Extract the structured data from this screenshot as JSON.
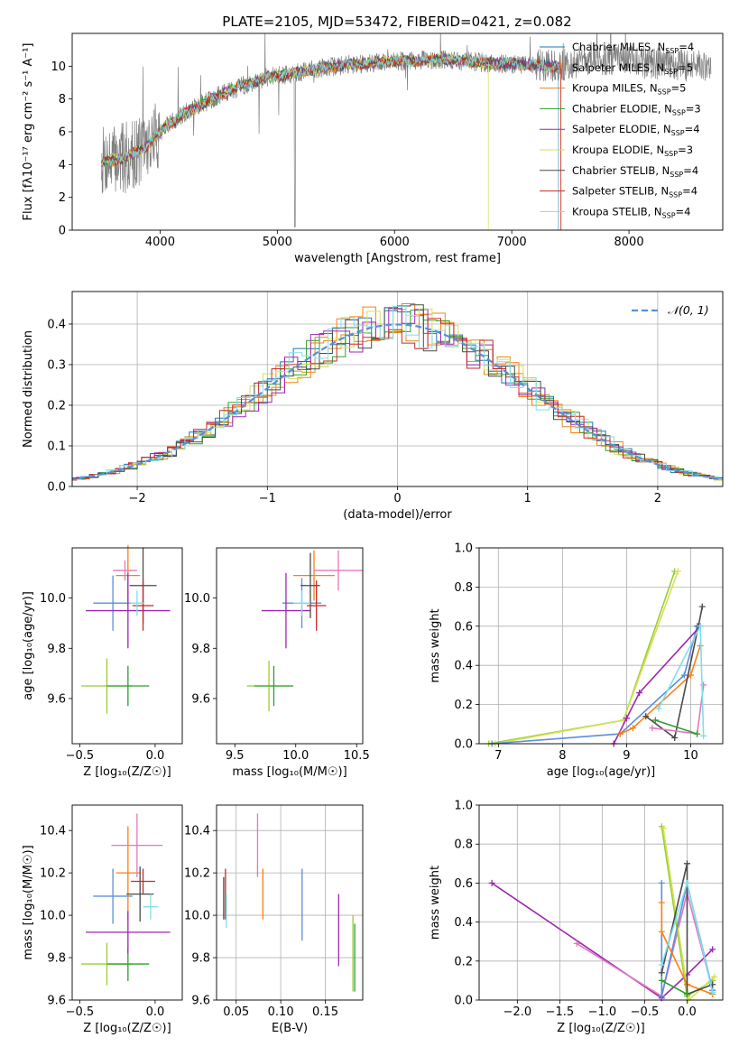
{
  "figure": {
    "title": "PLATE=2105, MJD=53472, FIBERID=0421, z=0.082"
  },
  "models": [
    {
      "name": "Chabrier MILES",
      "nssp": "4",
      "color": "#1f77b4"
    },
    {
      "name": "Salpeter MILES",
      "nssp": "5",
      "color": "#ff7f0e"
    },
    {
      "name": "Kroupa MILES",
      "nssp": "5",
      "color": "#d98c1f"
    },
    {
      "name": "Chabrier ELODIE",
      "nssp": "3",
      "color": "#2ca02c"
    },
    {
      "name": "Salpeter ELODIE",
      "nssp": "4",
      "color": "#9c27b0"
    },
    {
      "name": "Kroupa ELODIE",
      "nssp": "3",
      "color": "#d4e157"
    },
    {
      "name": "Chabrier STELIB",
      "nssp": "4",
      "color": "#4a4a4a"
    },
    {
      "name": "Salpeter STELIB",
      "nssp": "4",
      "color": "#c62828"
    },
    {
      "name": "Kroupa STELIB",
      "nssp": "4",
      "color": "#80deea"
    }
  ],
  "legend_nssp_prefix": "N",
  "legend_nssp_sub": "SSP",
  "colors": {
    "data_spectrum": "#808080",
    "gaussian": "#5b8dd9",
    "grid": "#b0b0b0"
  },
  "chart_data": [
    {
      "id": "spectrum",
      "type": "line",
      "xlabel": "wavelength [Angstrom, rest frame]",
      "ylabel": "Flux [fλ10⁻¹⁷ erg cm⁻² s⁻¹ A⁻¹]",
      "xlim": [
        3250,
        8800
      ],
      "ylim": [
        0,
        12
      ],
      "xticks": [
        "4000",
        "5000",
        "6000",
        "7000",
        "8000"
      ],
      "xtick_values": [
        4000,
        5000,
        6000,
        7000,
        8000
      ],
      "yticks": [
        "0",
        "2",
        "4",
        "6",
        "8",
        "10"
      ],
      "ytick_values": [
        0,
        2,
        4,
        6,
        8,
        10
      ],
      "continuum": [
        [
          3500,
          4.2
        ],
        [
          3700,
          4.4
        ],
        [
          3900,
          5.2
        ],
        [
          4000,
          6.0
        ],
        [
          4100,
          6.6
        ],
        [
          4300,
          7.5
        ],
        [
          4500,
          8.2
        ],
        [
          4700,
          8.8
        ],
        [
          4900,
          9.3
        ],
        [
          5100,
          9.5
        ],
        [
          5300,
          9.8
        ],
        [
          5600,
          10.1
        ],
        [
          6000,
          10.3
        ],
        [
          6400,
          10.4
        ],
        [
          6800,
          10.2
        ],
        [
          7100,
          10.1
        ],
        [
          7400,
          10.0
        ],
        [
          7700,
          10.5
        ],
        [
          8000,
          10.3
        ],
        [
          8400,
          10.1
        ],
        [
          8700,
          10.0
        ]
      ]
    },
    {
      "id": "residuals",
      "type": "bar",
      "xlabel": "(data-model)/error",
      "ylabel": "Normed distribution",
      "xlim": [
        -2.5,
        2.5
      ],
      "ylim": [
        0,
        0.48
      ],
      "xticks": [
        "−2",
        "−1",
        "0",
        "1",
        "2"
      ],
      "xtick_values": [
        -2,
        -1,
        0,
        1,
        2
      ],
      "yticks": [
        "0.0",
        "0.1",
        "0.2",
        "0.3",
        "0.4"
      ],
      "ytick_values": [
        0,
        0.1,
        0.2,
        0.3,
        0.4
      ],
      "legend": "𝒩(0, 1)",
      "grid": true
    },
    {
      "id": "age_vs_Z",
      "type": "scatter",
      "xlabel": "Z [log₁₀(Z/Z☉)]",
      "ylabel": "age  [log₁₀(age/yr)]",
      "xlim": [
        -0.55,
        0.18
      ],
      "ylim": [
        9.42,
        10.2
      ],
      "xticks": [
        "−0.5",
        "0.0"
      ],
      "xtick_values": [
        -0.5,
        0
      ],
      "yticks": [
        "9.6",
        "9.8",
        "10.0"
      ],
      "ytick_values": [
        9.6,
        9.8,
        10.0
      ],
      "points": [
        {
          "x": -0.28,
          "y": 9.98,
          "xerr": 0.13,
          "yerr": 0.11,
          "color": "#5b8dd9"
        },
        {
          "x": -0.18,
          "y": 10.09,
          "xerr": 0.08,
          "yerr": 0.12,
          "color": "#ff7f0e"
        },
        {
          "x": -0.2,
          "y": 10.11,
          "xerr": 0.08,
          "yerr": 0.04,
          "color": "#e377c2"
        },
        {
          "x": -0.32,
          "y": 9.65,
          "xerr": 0.17,
          "yerr": 0.11,
          "color": "#9acd32"
        },
        {
          "x": -0.18,
          "y": 9.65,
          "xerr": 0.14,
          "yerr": 0.08,
          "color": "#2ca02c"
        },
        {
          "x": -0.18,
          "y": 9.95,
          "xerr": 0.28,
          "yerr": 0.15,
          "color": "#9c27b0"
        },
        {
          "x": -0.08,
          "y": 10.05,
          "xerr": 0.09,
          "yerr": 0.15,
          "color": "#4a4a4a"
        },
        {
          "x": -0.08,
          "y": 9.97,
          "xerr": 0.07,
          "yerr": 0.1,
          "color": "#c62828"
        },
        {
          "x": -0.12,
          "y": 9.98,
          "xerr": 0.05,
          "yerr": 0.05,
          "color": "#80deea"
        }
      ]
    },
    {
      "id": "age_vs_mass",
      "type": "scatter",
      "xlabel": "mass [log₁₀(M/M☉)]",
      "ylabel": "",
      "xlim": [
        9.35,
        10.55
      ],
      "ylim": [
        9.42,
        10.2
      ],
      "xticks": [
        "9.5",
        "10.0",
        "10.5"
      ],
      "xtick_values": [
        9.5,
        10.0,
        10.5
      ],
      "yticks": [
        "9.6",
        "9.8",
        "10.0"
      ],
      "ytick_values": [
        9.6,
        9.8,
        10.0
      ],
      "points": [
        {
          "x": 10.05,
          "y": 9.98,
          "xerr": 0.16,
          "yerr": 0.1,
          "color": "#5b8dd9"
        },
        {
          "x": 10.15,
          "y": 10.09,
          "xerr": 0.17,
          "yerr": 0.1,
          "color": "#ff7f0e"
        },
        {
          "x": 10.35,
          "y": 10.11,
          "xerr": 0.2,
          "yerr": 0.08,
          "color": "#e377c2"
        },
        {
          "x": 9.78,
          "y": 9.65,
          "xerr": 0.18,
          "yerr": 0.1,
          "color": "#9acd32"
        },
        {
          "x": 9.82,
          "y": 9.65,
          "xerr": 0.16,
          "yerr": 0.08,
          "color": "#2ca02c"
        },
        {
          "x": 9.92,
          "y": 9.95,
          "xerr": 0.2,
          "yerr": 0.15,
          "color": "#9c27b0"
        },
        {
          "x": 10.12,
          "y": 10.05,
          "xerr": 0.08,
          "yerr": 0.13,
          "color": "#4a4a4a"
        },
        {
          "x": 10.17,
          "y": 9.97,
          "xerr": 0.08,
          "yerr": 0.1,
          "color": "#c62828"
        },
        {
          "x": 10.05,
          "y": 9.98,
          "xerr": 0.07,
          "yerr": 0.05,
          "color": "#80deea"
        }
      ]
    },
    {
      "id": "massweight_vs_age",
      "type": "line",
      "xlabel": "age  [log₁₀(age/yr)]",
      "ylabel": "mass weight",
      "xlim": [
        6.7,
        10.5
      ],
      "ylim": [
        0,
        1
      ],
      "xticks": [
        "7",
        "8",
        "9",
        "10"
      ],
      "xtick_values": [
        7,
        8,
        9,
        10
      ],
      "yticks": [
        "0.0",
        "0.2",
        "0.4",
        "0.6",
        "0.8",
        "1.0"
      ],
      "ytick_values": [
        0,
        0.2,
        0.4,
        0.6,
        0.8,
        1.0
      ],
      "grid": true,
      "series": [
        {
          "color": "#9acd32",
          "x": [
            6.85,
            8.95,
            9.75
          ],
          "y": [
            0.0,
            0.12,
            0.88
          ]
        },
        {
          "color": "#d4e157",
          "x": [
            6.95,
            8.95,
            9.8
          ],
          "y": [
            0.0,
            0.12,
            0.88
          ]
        },
        {
          "color": "#5b8dd9",
          "x": [
            6.9,
            8.9,
            9.9,
            10.1
          ],
          "y": [
            0.0,
            0.05,
            0.35,
            0.6
          ]
        },
        {
          "color": "#9c27b0",
          "x": [
            8.8,
            9.0,
            9.2,
            10.15
          ],
          "y": [
            0.0,
            0.13,
            0.26,
            0.6
          ]
        },
        {
          "color": "#ff7f0e",
          "x": [
            8.9,
            9.1,
            10.0,
            10.15
          ],
          "y": [
            0.05,
            0.08,
            0.35,
            0.5
          ]
        },
        {
          "color": "#4a4a4a",
          "x": [
            9.3,
            9.75,
            10.12,
            10.18
          ],
          "y": [
            0.14,
            0.03,
            0.6,
            0.7
          ]
        },
        {
          "color": "#e377c2",
          "x": [
            9.4,
            10.1,
            10.2
          ],
          "y": [
            0.08,
            0.05,
            0.3
          ]
        },
        {
          "color": "#80deea",
          "x": [
            9.5,
            10.15,
            10.2
          ],
          "y": [
            0.18,
            0.6,
            0.04
          ]
        },
        {
          "color": "#2ca02c",
          "x": [
            9.45,
            10.1
          ],
          "y": [
            0.12,
            0.05
          ]
        }
      ]
    },
    {
      "id": "mass_vs_Z",
      "type": "scatter",
      "xlabel": "Z [log₁₀(Z/Z☉)]",
      "ylabel": "mass [log₁₀(M/M☉)]",
      "xlim": [
        -0.55,
        0.18
      ],
      "ylim": [
        9.6,
        10.52
      ],
      "xticks": [
        "−0.5",
        "0.0"
      ],
      "xtick_values": [
        -0.5,
        0
      ],
      "yticks": [
        "9.6",
        "9.8",
        "10.0",
        "10.2",
        "10.4"
      ],
      "ytick_values": [
        9.6,
        9.8,
        10.0,
        10.2,
        10.4
      ],
      "points": [
        {
          "x": -0.28,
          "y": 10.09,
          "xerr": 0.13,
          "yerr": 0.13,
          "color": "#5b8dd9"
        },
        {
          "x": -0.18,
          "y": 10.2,
          "xerr": 0.08,
          "yerr": 0.22,
          "color": "#ff7f0e"
        },
        {
          "x": -0.12,
          "y": 10.33,
          "xerr": 0.17,
          "yerr": 0.15,
          "color": "#e377c2"
        },
        {
          "x": -0.32,
          "y": 9.77,
          "xerr": 0.17,
          "yerr": 0.1,
          "color": "#9acd32"
        },
        {
          "x": -0.18,
          "y": 9.77,
          "xerr": 0.14,
          "yerr": 0.08,
          "color": "#2ca02c"
        },
        {
          "x": -0.18,
          "y": 9.92,
          "xerr": 0.28,
          "yerr": 0.1,
          "color": "#9c27b0"
        },
        {
          "x": -0.1,
          "y": 10.1,
          "xerr": 0.09,
          "yerr": 0.13,
          "color": "#4a4a4a"
        },
        {
          "x": -0.08,
          "y": 10.16,
          "xerr": 0.08,
          "yerr": 0.06,
          "color": "#c62828"
        },
        {
          "x": -0.03,
          "y": 10.04,
          "xerr": 0.05,
          "yerr": 0.06,
          "color": "#80deea"
        }
      ]
    },
    {
      "id": "mass_vs_ebv",
      "type": "scatter",
      "xlabel": "E(B-V)",
      "ylabel": "",
      "xlim": [
        0.028,
        0.192
      ],
      "ylim": [
        9.6,
        10.52
      ],
      "xticks": [
        "0.05",
        "0.10",
        "0.15"
      ],
      "xtick_values": [
        0.05,
        0.1,
        0.15
      ],
      "yticks": [
        "9.6",
        "9.8",
        "10.0",
        "10.2",
        "10.4"
      ],
      "ytick_values": [
        9.6,
        9.8,
        10.0,
        10.2,
        10.4
      ],
      "grid": true,
      "points": [
        {
          "x": 0.038,
          "y": 10.1,
          "xerr": 0,
          "yerr": 0.12,
          "color": "#c62828"
        },
        {
          "x": 0.036,
          "y": 10.08,
          "xerr": 0,
          "yerr": 0.1,
          "color": "#4a4a4a"
        },
        {
          "x": 0.039,
          "y": 10.02,
          "xerr": 0,
          "yerr": 0.08,
          "color": "#80deea"
        },
        {
          "x": 0.074,
          "y": 10.33,
          "xerr": 0,
          "yerr": 0.15,
          "color": "#e377c2"
        },
        {
          "x": 0.08,
          "y": 10.1,
          "xerr": 0,
          "yerr": 0.12,
          "color": "#ff7f0e"
        },
        {
          "x": 0.124,
          "y": 10.05,
          "xerr": 0,
          "yerr": 0.17,
          "color": "#5b8dd9"
        },
        {
          "x": 0.165,
          "y": 9.93,
          "xerr": 0,
          "yerr": 0.17,
          "color": "#9c27b0"
        },
        {
          "x": 0.181,
          "y": 9.82,
          "xerr": 0,
          "yerr": 0.18,
          "color": "#9acd32"
        },
        {
          "x": 0.183,
          "y": 9.8,
          "xerr": 0,
          "yerr": 0.16,
          "color": "#2ca02c"
        }
      ]
    },
    {
      "id": "massweight_vs_Z",
      "type": "line",
      "xlabel": "Z [log₁₀(Z/Z☉)]",
      "ylabel": "mass weight",
      "xlim": [
        -2.45,
        0.42
      ],
      "ylim": [
        0,
        1
      ],
      "xticks": [
        "−2.0",
        "−1.5",
        "−1.0",
        "−0.5",
        "0.0"
      ],
      "xtick_values": [
        -2.0,
        -1.5,
        -1.0,
        -0.5,
        0
      ],
      "yticks": [
        "0.0",
        "0.2",
        "0.4",
        "0.6",
        "0.8",
        "1.0"
      ],
      "ytick_values": [
        0,
        0.2,
        0.4,
        0.6,
        0.8,
        1.0
      ],
      "grid": true,
      "series": [
        {
          "color": "#9c27b0",
          "x": [
            -2.3,
            -0.3,
            0.0,
            0.3
          ],
          "y": [
            0.6,
            0.01,
            0.13,
            0.26
          ]
        },
        {
          "color": "#e377c2",
          "x": [
            -1.3,
            -0.3,
            0.0,
            0.3
          ],
          "y": [
            0.29,
            0.02,
            0.55,
            0.05
          ]
        },
        {
          "color": "#9acd32",
          "x": [
            -0.3,
            0.0,
            0.3
          ],
          "y": [
            0.89,
            0.02,
            0.1
          ]
        },
        {
          "color": "#d4e157",
          "x": [
            -0.28,
            0.02,
            0.32
          ],
          "y": [
            0.88,
            0.0,
            0.12
          ]
        },
        {
          "color": "#5b8dd9",
          "x": [
            -0.3,
            -0.3,
            0.0,
            0.3
          ],
          "y": [
            0.6,
            0.02,
            0.6,
            0.05
          ]
        },
        {
          "color": "#ff7f0e",
          "x": [
            -0.3,
            -0.3,
            0.0,
            0.3
          ],
          "y": [
            0.5,
            0.35,
            0.08,
            0.03
          ]
        },
        {
          "color": "#4a4a4a",
          "x": [
            -0.3,
            0.0,
            0.0,
            0.3
          ],
          "y": [
            0.14,
            0.7,
            0.03,
            0.08
          ]
        },
        {
          "color": "#80deea",
          "x": [
            -0.3,
            0.0,
            0.3
          ],
          "y": [
            0.18,
            0.6,
            0.04
          ]
        },
        {
          "color": "#2ca02c",
          "x": [
            -0.3,
            0.0
          ],
          "y": [
            0.1,
            0.03
          ]
        }
      ]
    }
  ]
}
